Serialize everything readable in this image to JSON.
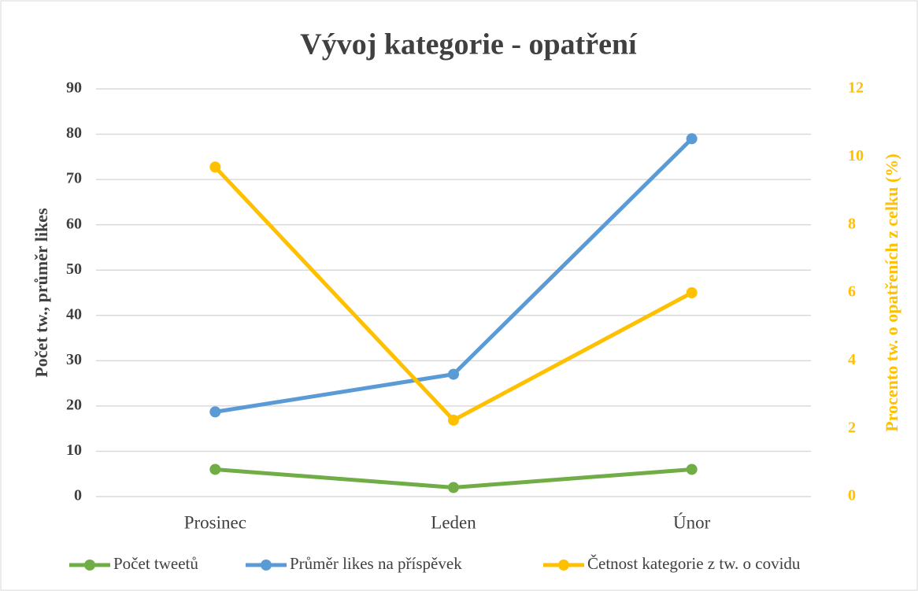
{
  "chart_data": {
    "type": "line",
    "title": "Vývoj kategorie - opatření",
    "ylabel": "Počet tw., průměr likes",
    "y2label": "Procento tw. o opatřeních z celku (%)",
    "categories": [
      "Prosinec",
      "Leden",
      "Únor"
    ],
    "series": [
      {
        "name": "Počet tweetů",
        "color": "#70ad47",
        "values": [
          6,
          2,
          6
        ]
      },
      {
        "name": "Průměr likes na příspěvek",
        "color": "#5b9bd5",
        "values": [
          18.7,
          27,
          79
        ]
      },
      {
        "name": "Četnost kategorie z tw. o covidu",
        "color": "#ffc000",
        "values": [
          9.7,
          2.25,
          6.0
        ],
        "axis": "y2"
      }
    ],
    "ylim": [
      0,
      90
    ],
    "yticks": [
      0,
      10,
      20,
      30,
      40,
      50,
      60,
      70,
      80,
      90
    ],
    "y2lim": [
      0,
      12
    ],
    "y2ticks": [
      0,
      2,
      4,
      6,
      8,
      10,
      12
    ],
    "grid": true,
    "legend": "bottom"
  }
}
